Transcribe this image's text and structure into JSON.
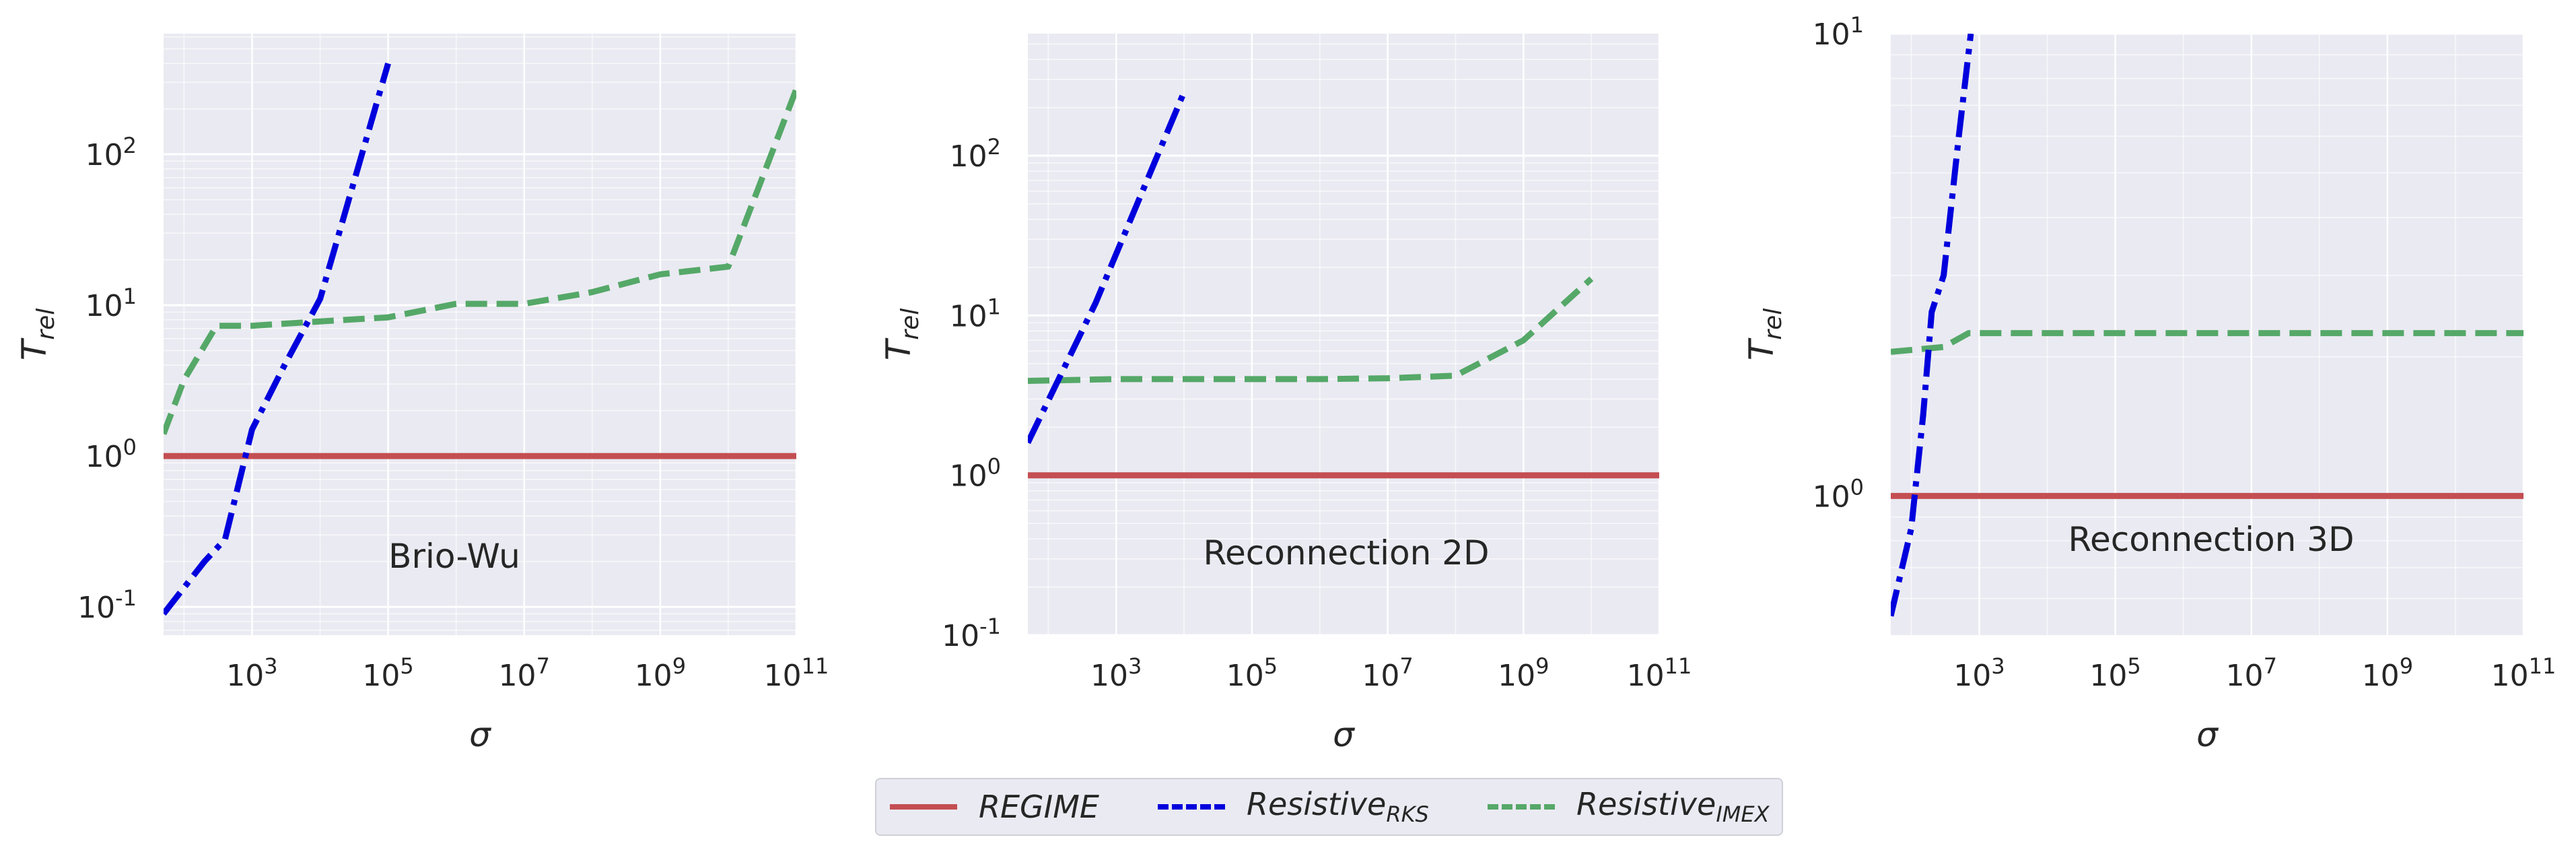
{
  "chart_data": [
    {
      "type": "line",
      "annotation": "Brio-Wu",
      "xlabel": "σ",
      "ylabel": {
        "base": "T",
        "sub": "rel"
      },
      "xscale": "log",
      "yscale": "log",
      "xlim": [
        50,
        100000000000
      ],
      "ylim": [
        0.065,
        630
      ],
      "yticks": [
        0.1,
        1,
        10,
        100
      ],
      "grid": true,
      "series": [
        {
          "key": "regime",
          "x": [
            50,
            100000000000
          ],
          "y": [
            1,
            1
          ]
        },
        {
          "key": "rks",
          "x": [
            50,
            200,
            400,
            1000,
            3000,
            10000,
            100000
          ],
          "y": [
            0.09,
            0.2,
            0.28,
            1.5,
            4.0,
            11,
            400
          ]
        },
        {
          "key": "imex",
          "x": [
            50,
            100,
            300,
            1000,
            10000,
            100000,
            1000000,
            10000000,
            100000000,
            1000000000,
            10000000000,
            100000000000
          ],
          "y": [
            1.4,
            3.2,
            7.3,
            7.3,
            7.8,
            8.3,
            10.2,
            10.2,
            12.2,
            16,
            18,
            270
          ]
        }
      ]
    },
    {
      "type": "line",
      "annotation": "Reconnection 2D",
      "xlabel": "σ",
      "ylabel": {
        "base": "T",
        "sub": "rel"
      },
      "xscale": "log",
      "yscale": "log",
      "xlim": [
        50,
        100000000000
      ],
      "ylim": [
        0.1,
        580
      ],
      "yticks": [
        0.1,
        1,
        10,
        100
      ],
      "grid": true,
      "series": [
        {
          "key": "regime",
          "x": [
            50,
            100000000000
          ],
          "y": [
            1,
            1
          ]
        },
        {
          "key": "rks",
          "x": [
            50,
            500,
            10000
          ],
          "y": [
            1.6,
            12,
            250
          ]
        },
        {
          "key": "imex",
          "x": [
            50,
            1000,
            10000,
            100000,
            1000000,
            10000000,
            100000000,
            1000000000,
            10000000000
          ],
          "y": [
            3.9,
            4.0,
            4.0,
            4.0,
            4.0,
            4.05,
            4.2,
            7.0,
            17
          ]
        }
      ]
    },
    {
      "type": "line",
      "annotation": "Reconnection 3D",
      "xlabel": "σ",
      "ylabel": {
        "base": "T",
        "sub": "rel"
      },
      "xscale": "log",
      "yscale": "log",
      "xlim": [
        50,
        100000000000
      ],
      "ylim": [
        0.5,
        10
      ],
      "yticks": [
        1,
        10
      ],
      "grid": true,
      "series": [
        {
          "key": "regime",
          "x": [
            50,
            100000000000
          ],
          "y": [
            1,
            1
          ]
        },
        {
          "key": "rks",
          "x": [
            50,
            100,
            150,
            200,
            300,
            500,
            750
          ],
          "y": [
            0.55,
            0.85,
            1.5,
            2.5,
            3.0,
            6.0,
            10
          ]
        },
        {
          "key": "imex",
          "x": [
            50,
            300,
            700,
            1000000,
            100000000000
          ],
          "y": [
            2.05,
            2.1,
            2.25,
            2.25,
            2.25
          ]
        }
      ]
    }
  ],
  "legend": {
    "regime": {
      "label": "REGIME",
      "color": "#c44e52",
      "dash": "solid"
    },
    "rks": {
      "label": "Resistive",
      "sub": "RKS",
      "color": "#0000dd",
      "dash": "dashdot"
    },
    "imex": {
      "label": "Resistive",
      "sub": "IMEX",
      "color": "#55a868",
      "dash": "dashed"
    }
  },
  "colors": {
    "axes_bg": "#eaeaf2",
    "grid": "#ffffff"
  }
}
